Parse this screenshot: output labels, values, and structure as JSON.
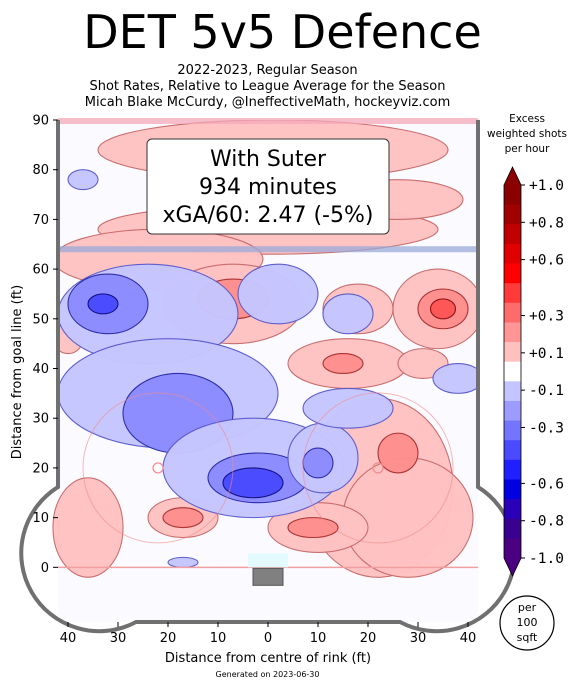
{
  "title": "DET 5v5 Defence",
  "subtitle_lines": [
    "2022-2023, Regular Season",
    "Shot Rates, Relative to League Average for the Season",
    "Micah Blake McCurdy, @IneffectiveMath, hockeyviz.com"
  ],
  "footer": "Generated on 2023-06-30",
  "annotation": {
    "line1": "With Suter",
    "line2": "934 minutes",
    "line3": "xGA/60: 2.47 (-5%)"
  },
  "per_area_label": {
    "line1": "per",
    "line2": "100",
    "line3": "sqft"
  },
  "chart_data": {
    "type": "heatmap",
    "xlabel": "Distance from centre of rink (ft)",
    "ylabel": "Distance from goal line (ft)",
    "xlim": [
      -42,
      42
    ],
    "ylim": [
      -11,
      90
    ],
    "x_ticks": [
      -40,
      -30,
      -20,
      -10,
      0,
      10,
      20,
      30,
      40
    ],
    "x_tick_labels": [
      "40",
      "30",
      "20",
      "10",
      "0",
      "10",
      "20",
      "30",
      "40"
    ],
    "y_ticks": [
      0,
      10,
      20,
      30,
      40,
      50,
      60,
      70,
      80,
      90
    ],
    "y_tick_labels": [
      "0",
      "10",
      "20",
      "30",
      "40",
      "50",
      "60",
      "70",
      "80",
      "90"
    ],
    "colorbar": {
      "title": "Excess weighted shots per hour",
      "title_lines": [
        "Excess",
        "weighted shots",
        "per hour"
      ],
      "min": -1.0,
      "max": 1.0,
      "tick_values": [
        1.0,
        0.8,
        0.6,
        0.3,
        0.1,
        -0.1,
        -0.3,
        -0.6,
        -0.8,
        -1.0
      ],
      "tick_labels": [
        "+1.0",
        "+0.8",
        "+0.6",
        "+0.3",
        "+0.1",
        "-0.1",
        "-0.3",
        "-0.6",
        "-0.8",
        "-1.0"
      ],
      "colors_top_to_bottom": [
        "#8b0000",
        "#a00000",
        "#c00000",
        "#e00000",
        "#ff0000",
        "#ff3a3a",
        "#ff6a6a",
        "#ff9595",
        "#ffc0c0",
        "#ffffff",
        "#c4c4ff",
        "#9c9cff",
        "#7474ff",
        "#4a4aff",
        "#2020ff",
        "#0000e0",
        "#2a00b8",
        "#3a0090",
        "#4b0082"
      ]
    },
    "regions": [
      {
        "sign": "+",
        "level": 1,
        "x": 1,
        "y": 84,
        "rx": 35,
        "ry": 6
      },
      {
        "sign": "+",
        "level": 1,
        "x": 0,
        "y": 68,
        "rx": 34,
        "ry": 5
      },
      {
        "sign": "+",
        "level": 1,
        "x": -22,
        "y": 62,
        "rx": 21,
        "ry": 6
      },
      {
        "sign": "+",
        "level": 1,
        "x": 26,
        "y": 74,
        "rx": 13,
        "ry": 4
      },
      {
        "sign": "+",
        "level": 1,
        "x": -7,
        "y": 53,
        "rx": 14,
        "ry": 8
      },
      {
        "sign": "+",
        "level": 2,
        "x": -7,
        "y": 54,
        "rx": 7,
        "ry": 4
      },
      {
        "sign": "+",
        "level": 1,
        "x": 18,
        "y": 52,
        "rx": 7,
        "ry": 5
      },
      {
        "sign": "+",
        "level": 1,
        "x": 34,
        "y": 52,
        "rx": 9,
        "ry": 8
      },
      {
        "sign": "+",
        "level": 2,
        "x": 35,
        "y": 52,
        "rx": 5,
        "ry": 4
      },
      {
        "sign": "+",
        "level": 3,
        "x": 35,
        "y": 52,
        "rx": 2.5,
        "ry": 2
      },
      {
        "sign": "+",
        "level": 1,
        "x": 16,
        "y": 41,
        "rx": 12,
        "ry": 5
      },
      {
        "sign": "+",
        "level": 2,
        "x": 15,
        "y": 41,
        "rx": 4,
        "ry": 2
      },
      {
        "sign": "+",
        "level": 1,
        "x": 31,
        "y": 41,
        "rx": 5,
        "ry": 3
      },
      {
        "sign": "+",
        "level": 1,
        "x": -40,
        "y": 46,
        "rx": 3,
        "ry": 3
      },
      {
        "sign": "+",
        "level": 1,
        "x": 22,
        "y": 16,
        "rx": 15,
        "ry": 18
      },
      {
        "sign": "+",
        "level": 1,
        "x": 28,
        "y": 10,
        "rx": 13,
        "ry": 12
      },
      {
        "sign": "+",
        "level": 2,
        "x": 26,
        "y": 23,
        "rx": 4,
        "ry": 4
      },
      {
        "sign": "+",
        "level": 1,
        "x": 10,
        "y": 8,
        "rx": 10,
        "ry": 5
      },
      {
        "sign": "+",
        "level": 2,
        "x": 9,
        "y": 8,
        "rx": 5,
        "ry": 2
      },
      {
        "sign": "+",
        "level": 1,
        "x": -17,
        "y": 10,
        "rx": 7,
        "ry": 4
      },
      {
        "sign": "+",
        "level": 2,
        "x": -17,
        "y": 10,
        "rx": 4,
        "ry": 2
      },
      {
        "sign": "+",
        "level": 1,
        "x": -36,
        "y": 8,
        "rx": 7,
        "ry": 10
      },
      {
        "sign": "-",
        "level": 1,
        "x": -24,
        "y": 51,
        "rx": 18,
        "ry": 10
      },
      {
        "sign": "-",
        "level": 2,
        "x": -32,
        "y": 53,
        "rx": 8,
        "ry": 6
      },
      {
        "sign": "-",
        "level": 3,
        "x": -33,
        "y": 53,
        "rx": 3,
        "ry": 2
      },
      {
        "sign": "-",
        "level": 1,
        "x": -20,
        "y": 35,
        "rx": 22,
        "ry": 11
      },
      {
        "sign": "-",
        "level": 2,
        "x": -18,
        "y": 31,
        "rx": 11,
        "ry": 8
      },
      {
        "sign": "-",
        "level": 1,
        "x": -3,
        "y": 20,
        "rx": 18,
        "ry": 10
      },
      {
        "sign": "-",
        "level": 2,
        "x": -2,
        "y": 18,
        "rx": 10,
        "ry": 5
      },
      {
        "sign": "-",
        "level": 3,
        "x": -3,
        "y": 17,
        "rx": 6,
        "ry": 3
      },
      {
        "sign": "-",
        "level": 1,
        "x": 11,
        "y": 22,
        "rx": 7,
        "ry": 7
      },
      {
        "sign": "-",
        "level": 2,
        "x": 10,
        "y": 21,
        "rx": 3,
        "ry": 3
      },
      {
        "sign": "-",
        "level": 1,
        "x": 2,
        "y": 55,
        "rx": 8,
        "ry": 6
      },
      {
        "sign": "-",
        "level": 1,
        "x": 16,
        "y": 51,
        "rx": 5,
        "ry": 4
      },
      {
        "sign": "-",
        "level": 1,
        "x": 16,
        "y": 32,
        "rx": 9,
        "ry": 4
      },
      {
        "sign": "-",
        "level": 1,
        "x": 38,
        "y": 38,
        "rx": 5,
        "ry": 3
      },
      {
        "sign": "-",
        "level": 1,
        "x": -37,
        "y": 78,
        "rx": 3,
        "ry": 2
      },
      {
        "sign": "-",
        "level": 1,
        "x": -17,
        "y": 1,
        "rx": 3,
        "ry": 1
      }
    ]
  }
}
